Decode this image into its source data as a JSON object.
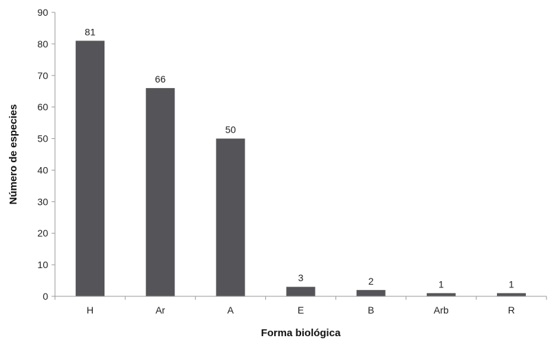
{
  "chart_data": {
    "type": "bar",
    "categories": [
      "H",
      "Ar",
      "A",
      "E",
      "B",
      "Arb",
      "R"
    ],
    "values": [
      81,
      66,
      50,
      3,
      2,
      1,
      1
    ],
    "data_labels": [
      "81",
      "66",
      "50",
      "3",
      "2",
      "1",
      "1"
    ],
    "xlabel": "Forma biológica",
    "ylabel": "Número de especies",
    "ylim": [
      0,
      90
    ],
    "yticks": [
      0,
      10,
      20,
      30,
      40,
      50,
      60,
      70,
      80,
      90
    ],
    "ytick_labels": [
      "0",
      "10",
      "20",
      "30",
      "40",
      "50",
      "60",
      "70",
      "80",
      "90"
    ],
    "grid": false,
    "legend": "none",
    "colors": {
      "bar": "#555559",
      "axis": "#9a9a9a"
    }
  }
}
